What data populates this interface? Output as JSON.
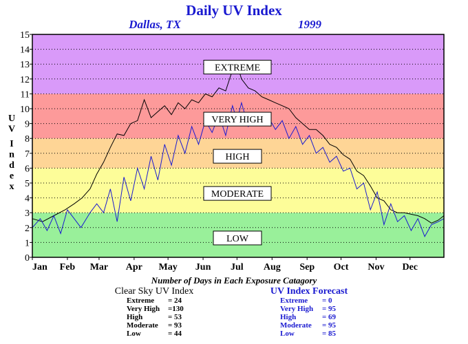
{
  "title": "Daily UV Index",
  "location": "Dallas, TX",
  "year": "1999",
  "y_axis_label": "UV Index",
  "counts_title": "Number of Days in Each Exposure Catagory",
  "bands": [
    {
      "label": "LOW",
      "from": 0,
      "to": 3,
      "color": "#99f09a",
      "label_y": 1.3
    },
    {
      "label": "MODERATE",
      "from": 3,
      "to": 6,
      "color": "#fdfd99",
      "label_y": 4.3
    },
    {
      "label": "HIGH",
      "from": 6,
      "to": 8,
      "color": "#fed596",
      "label_y": 6.8
    },
    {
      "label": "VERY HIGH",
      "from": 8,
      "to": 11,
      "color": "#fd9a9a",
      "label_y": 9.3
    },
    {
      "label": "EXTREME",
      "from": 11,
      "to": 15,
      "color": "#d99af9",
      "label_y": 12.8
    }
  ],
  "clear_sky": {
    "heading": "Clear Sky UV Index",
    "rows": [
      {
        "label": "Extreme",
        "value": "=  24"
      },
      {
        "label": "Very High",
        "value": "=130"
      },
      {
        "label": "High",
        "value": "=  53"
      },
      {
        "label": "Moderate",
        "value": "=  93"
      },
      {
        "label": "Low",
        "value": "=  44"
      }
    ]
  },
  "forecast": {
    "heading": "UV Index Forecast",
    "rows": [
      {
        "label": "Extreme",
        "value": "=   0"
      },
      {
        "label": "Very High",
        "value": "=  95"
      },
      {
        "label": "High",
        "value": "=  69"
      },
      {
        "label": "Moderate",
        "value": "=  95"
      },
      {
        "label": "Low",
        "value": "=  85"
      }
    ]
  },
  "colors": {
    "clear_sky_line": "#000000",
    "forecast_line": "#1a1ad0",
    "title": "#1a1ad0"
  },
  "chart_data": {
    "type": "line",
    "x_unit": "day of year",
    "xlim": [
      1,
      365
    ],
    "ylim": [
      0,
      15
    ],
    "y_ticks": [
      0,
      1,
      2,
      3,
      4,
      5,
      6,
      7,
      8,
      9,
      10,
      11,
      12,
      13,
      14,
      15
    ],
    "x_ticks": [
      {
        "label": "Jan",
        "day": 1
      },
      {
        "label": "Feb",
        "day": 32
      },
      {
        "label": "Mar",
        "day": 60
      },
      {
        "label": "Apr",
        "day": 91
      },
      {
        "label": "May",
        "day": 121
      },
      {
        "label": "Jun",
        "day": 152
      },
      {
        "label": "Jul",
        "day": 182
      },
      {
        "label": "Aug",
        "day": 213
      },
      {
        "label": "Sep",
        "day": 244
      },
      {
        "label": "Oct",
        "day": 274
      },
      {
        "label": "Nov",
        "day": 305
      },
      {
        "label": "Dec",
        "day": 335
      }
    ],
    "grid": true,
    "series": [
      {
        "name": "Clear Sky UV Index",
        "x": [
          1,
          10,
          20,
          30,
          38,
          45,
          52,
          58,
          64,
          70,
          76,
          82,
          88,
          94,
          100,
          106,
          112,
          118,
          124,
          130,
          136,
          142,
          148,
          154,
          160,
          166,
          172,
          178,
          182,
          186,
          192,
          198,
          204,
          210,
          216,
          222,
          228,
          234,
          240,
          246,
          252,
          258,
          264,
          270,
          276,
          282,
          288,
          294,
          300,
          306,
          312,
          318,
          324,
          330,
          336,
          342,
          348,
          354,
          360,
          365
        ],
        "y": [
          2.6,
          2.4,
          2.8,
          3.2,
          3.6,
          4.0,
          4.6,
          5.6,
          6.4,
          7.4,
          8.3,
          8.2,
          9.0,
          9.2,
          10.6,
          9.4,
          9.8,
          10.2,
          9.6,
          10.4,
          10.0,
          10.6,
          10.4,
          11.0,
          10.8,
          11.4,
          11.2,
          12.6,
          13.0,
          12.0,
          11.4,
          11.2,
          10.8,
          10.6,
          10.4,
          10.2,
          10.0,
          9.4,
          9.0,
          8.6,
          8.6,
          8.2,
          7.6,
          7.4,
          6.9,
          6.6,
          5.8,
          5.5,
          4.8,
          4.0,
          3.8,
          3.2,
          3.0,
          3.0,
          2.9,
          2.8,
          2.6,
          2.3,
          2.5,
          2.8
        ]
      },
      {
        "name": "UV Index Forecast",
        "x": [
          1,
          8,
          14,
          20,
          26,
          32,
          38,
          44,
          52,
          58,
          64,
          70,
          76,
          82,
          88,
          94,
          100,
          106,
          112,
          118,
          124,
          130,
          136,
          142,
          148,
          154,
          160,
          166,
          172,
          178,
          182,
          186,
          192,
          198,
          204,
          210,
          216,
          222,
          228,
          234,
          240,
          246,
          252,
          258,
          264,
          270,
          276,
          282,
          288,
          294,
          300,
          306,
          312,
          318,
          324,
          330,
          336,
          342,
          348,
          354,
          360,
          365
        ],
        "y": [
          2.0,
          2.6,
          1.8,
          2.8,
          1.6,
          3.2,
          2.6,
          2.0,
          3.0,
          3.6,
          3.0,
          4.6,
          2.4,
          5.4,
          3.8,
          6.0,
          4.6,
          6.8,
          5.2,
          7.6,
          6.2,
          8.2,
          7.0,
          8.8,
          7.6,
          9.2,
          8.4,
          9.6,
          8.2,
          10.2,
          9.2,
          10.4,
          8.8,
          9.6,
          9.0,
          9.4,
          8.6,
          9.2,
          8.0,
          8.8,
          7.6,
          8.2,
          7.0,
          7.4,
          6.4,
          6.8,
          5.8,
          6.0,
          4.6,
          5.0,
          3.2,
          4.4,
          2.2,
          3.6,
          2.4,
          2.8,
          1.8,
          2.6,
          1.4,
          2.2,
          2.4,
          2.6
        ]
      }
    ]
  }
}
